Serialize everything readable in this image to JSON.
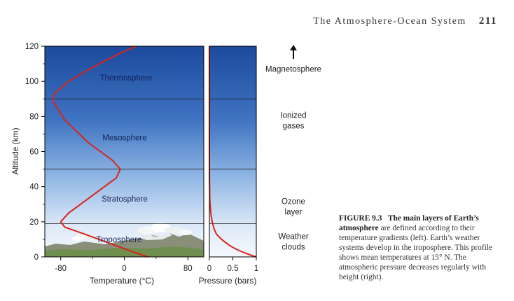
{
  "header": {
    "title": "The Atmosphere-Ocean System",
    "page_number": "211"
  },
  "caption": {
    "figure_label": "FIGURE 9.3",
    "bold_text": "The main layers of Earth’s atmosphere",
    "body_text": "are defined according to their temperature gradients (left). Earth’s weather systems develop in the troposphere. This profile shows mean temperatures at 15° N. The atmospheric pressure decreases regularly with height (right)."
  },
  "chart_data": [
    {
      "type": "line",
      "xlabel": "Temperature (°C)",
      "ylabel": "Altitude (km)",
      "xlim": [
        -100,
        100
      ],
      "ylim": [
        0,
        120
      ],
      "x_ticks": [
        "-80",
        "0",
        "80"
      ],
      "y_ticks": [
        "0",
        "20",
        "40",
        "60",
        "80",
        "100",
        "120"
      ],
      "series": [
        {
          "x": [
            30,
            10,
            -20,
            -50,
            -75,
            -80,
            -70,
            -40,
            -10,
            -5,
            -15,
            -45,
            -75,
            -90,
            -88,
            -70,
            -40,
            -10,
            15
          ],
          "y": [
            0,
            3,
            8,
            13,
            17,
            20,
            25,
            35,
            45,
            50,
            55,
            65,
            78,
            89,
            93,
            100,
            108,
            115,
            120
          ]
        }
      ],
      "layer_boundaries_km": [
        19,
        50,
        90
      ],
      "layer_labels": [
        "Thermosphere",
        "Mesosphere",
        "Stratosphere",
        "Troposphere"
      ],
      "line_color": "#d9241c"
    },
    {
      "type": "line",
      "xlabel": "Pressure (bars)",
      "xlim": [
        0,
        1
      ],
      "ylim": [
        0,
        120
      ],
      "x_ticks": [
        "0",
        "0.5",
        "1"
      ],
      "series": [
        {
          "x": [
            1.0,
            0.95,
            0.78,
            0.6,
            0.46,
            0.33,
            0.24,
            0.15,
            0.1,
            0.06,
            0.03,
            0.01,
            0.002,
            0.0003,
            0.0
          ],
          "y": [
            0,
            0.4,
            2,
            4,
            6,
            8.5,
            10.5,
            13,
            16,
            20,
            25,
            32,
            45,
            70,
            120
          ]
        }
      ],
      "line_color": "#d9241c"
    }
  ],
  "side_labels": [
    {
      "text": "Magnetosphere",
      "alt": 107
    },
    {
      "text": "Ionized\ngases",
      "alt": 78
    },
    {
      "text": "Ozone\nlayer",
      "alt": 29
    },
    {
      "text": "Weather\nclouds",
      "alt": 9
    }
  ],
  "colors": {
    "sky_top": "#1f4ea0",
    "sky_mid": "#6f9fd8",
    "sky_low": "#e6f0fb",
    "curve": "#d9241c"
  }
}
